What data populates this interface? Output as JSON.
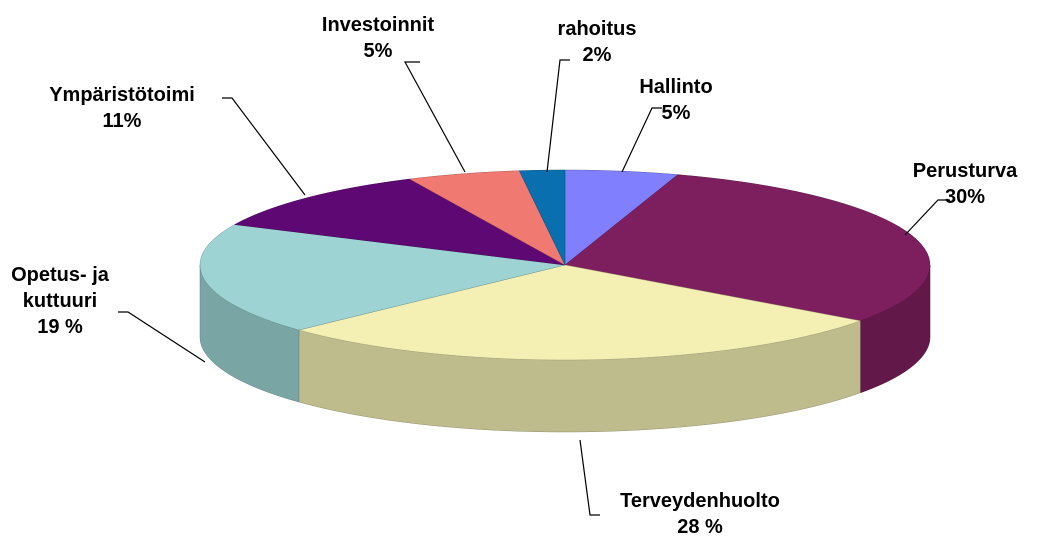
{
  "chart_data": {
    "type": "pie3d",
    "categories": [
      "Hallinto",
      "Perusturva",
      "Terveydenhuolto",
      "Opetus- ja kuttuuri",
      "Ympäristötoimi",
      "Investoinnit",
      "rahoitus"
    ],
    "values": [
      5,
      30,
      28,
      19,
      11,
      5,
      2
    ],
    "value_labels": [
      "5%",
      "30%",
      "28 %",
      "19 %",
      "11%",
      "5%",
      "2%"
    ],
    "colors": [
      "#8080ff",
      "#7d1f5e",
      "#f4f0b4",
      "#9dd3d3",
      "#5e0874",
      "#f07a72",
      "#0a6fae"
    ]
  }
}
